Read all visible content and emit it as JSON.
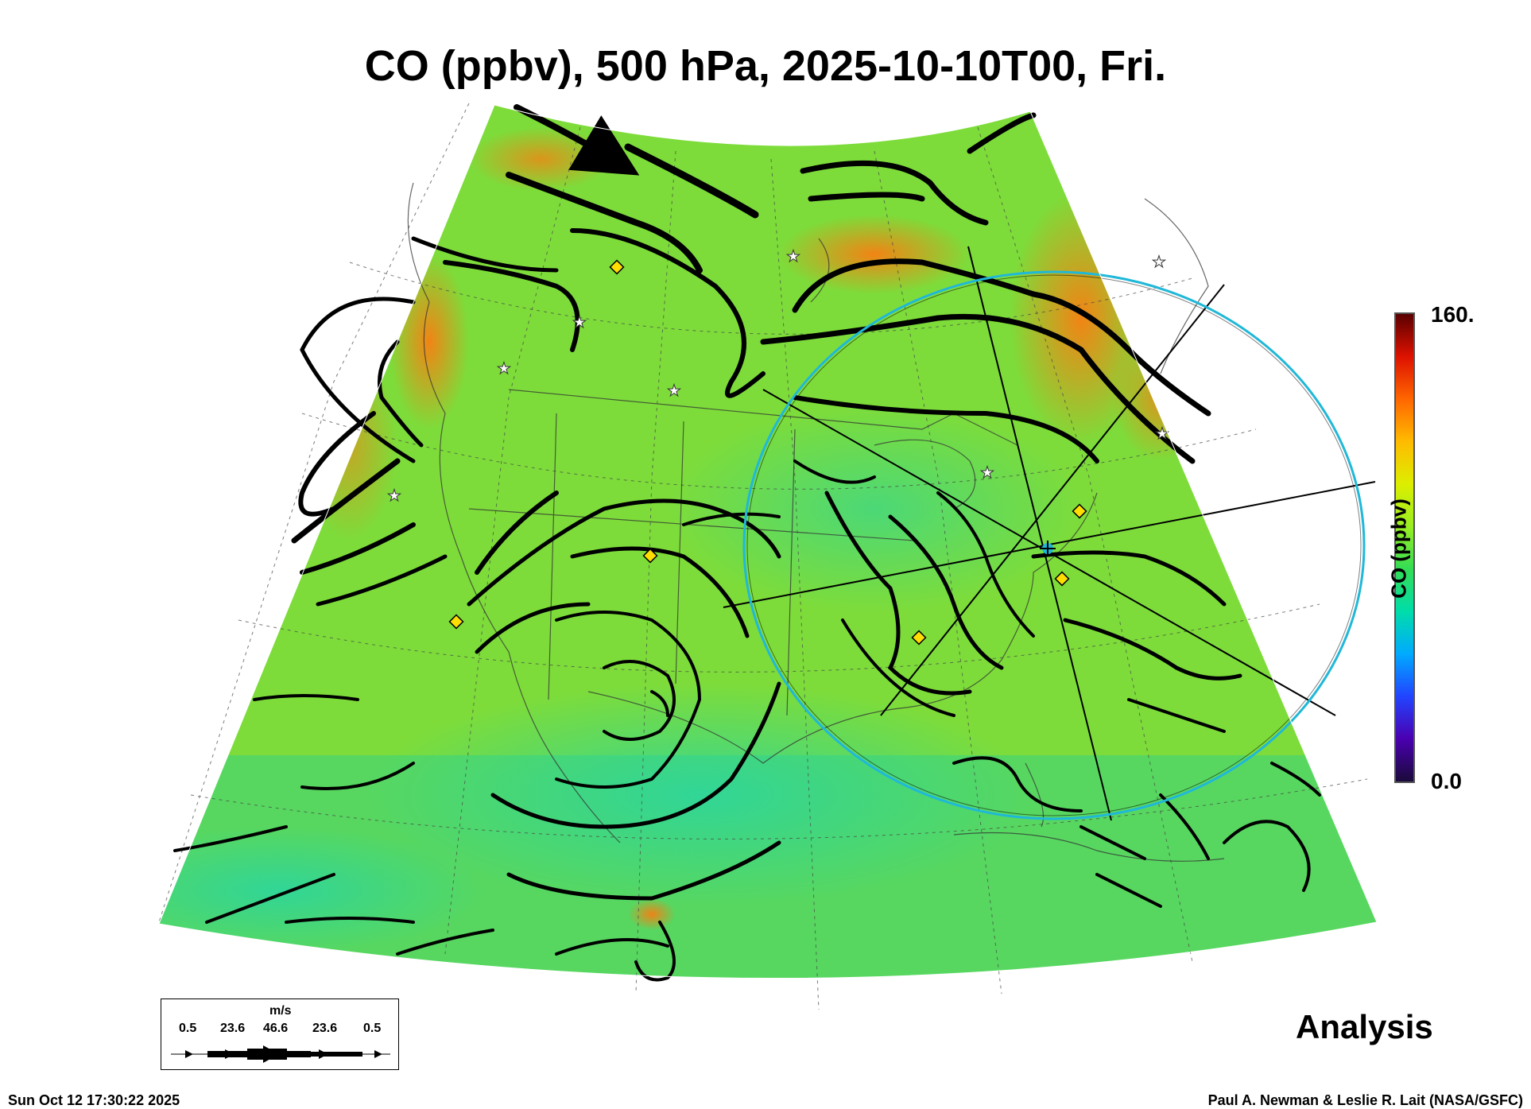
{
  "title": "CO (ppbv), 500 hPa, 2025-10-10T00, Fri.",
  "colorbar": {
    "title": "CO (ppbv)",
    "max_label": "160.",
    "min_label": "0.0",
    "min": 0,
    "max": 160,
    "colors": [
      "#1a0a3a",
      "#4a00b0",
      "#2244ff",
      "#00aaff",
      "#00ddaa",
      "#33dd55",
      "#99ee22",
      "#ddee00",
      "#ffbb00",
      "#ff6600",
      "#dd1100",
      "#5a0000"
    ]
  },
  "map_colors": {
    "background_field": "#7ddc3a",
    "low_field": "#3ad68a",
    "high_field": "#ff8c1a",
    "streamline": "#000000",
    "ring": "#20b8d8"
  },
  "wind_legend": {
    "units": "m/s",
    "speeds": [
      "0.5",
      "23.6",
      "46.6",
      "23.6",
      "0.5"
    ]
  },
  "label_analysis": "Analysis",
  "timestamp": "Sun Oct 12 17:30:22 2025",
  "credit": "Paul A. Newman & Leslie R. Lait (NASA/GSFC)",
  "markers": {
    "diamond_color": "#ffdd00",
    "star_color": "#ffffff",
    "center_marker_color": "#20b8d8"
  }
}
